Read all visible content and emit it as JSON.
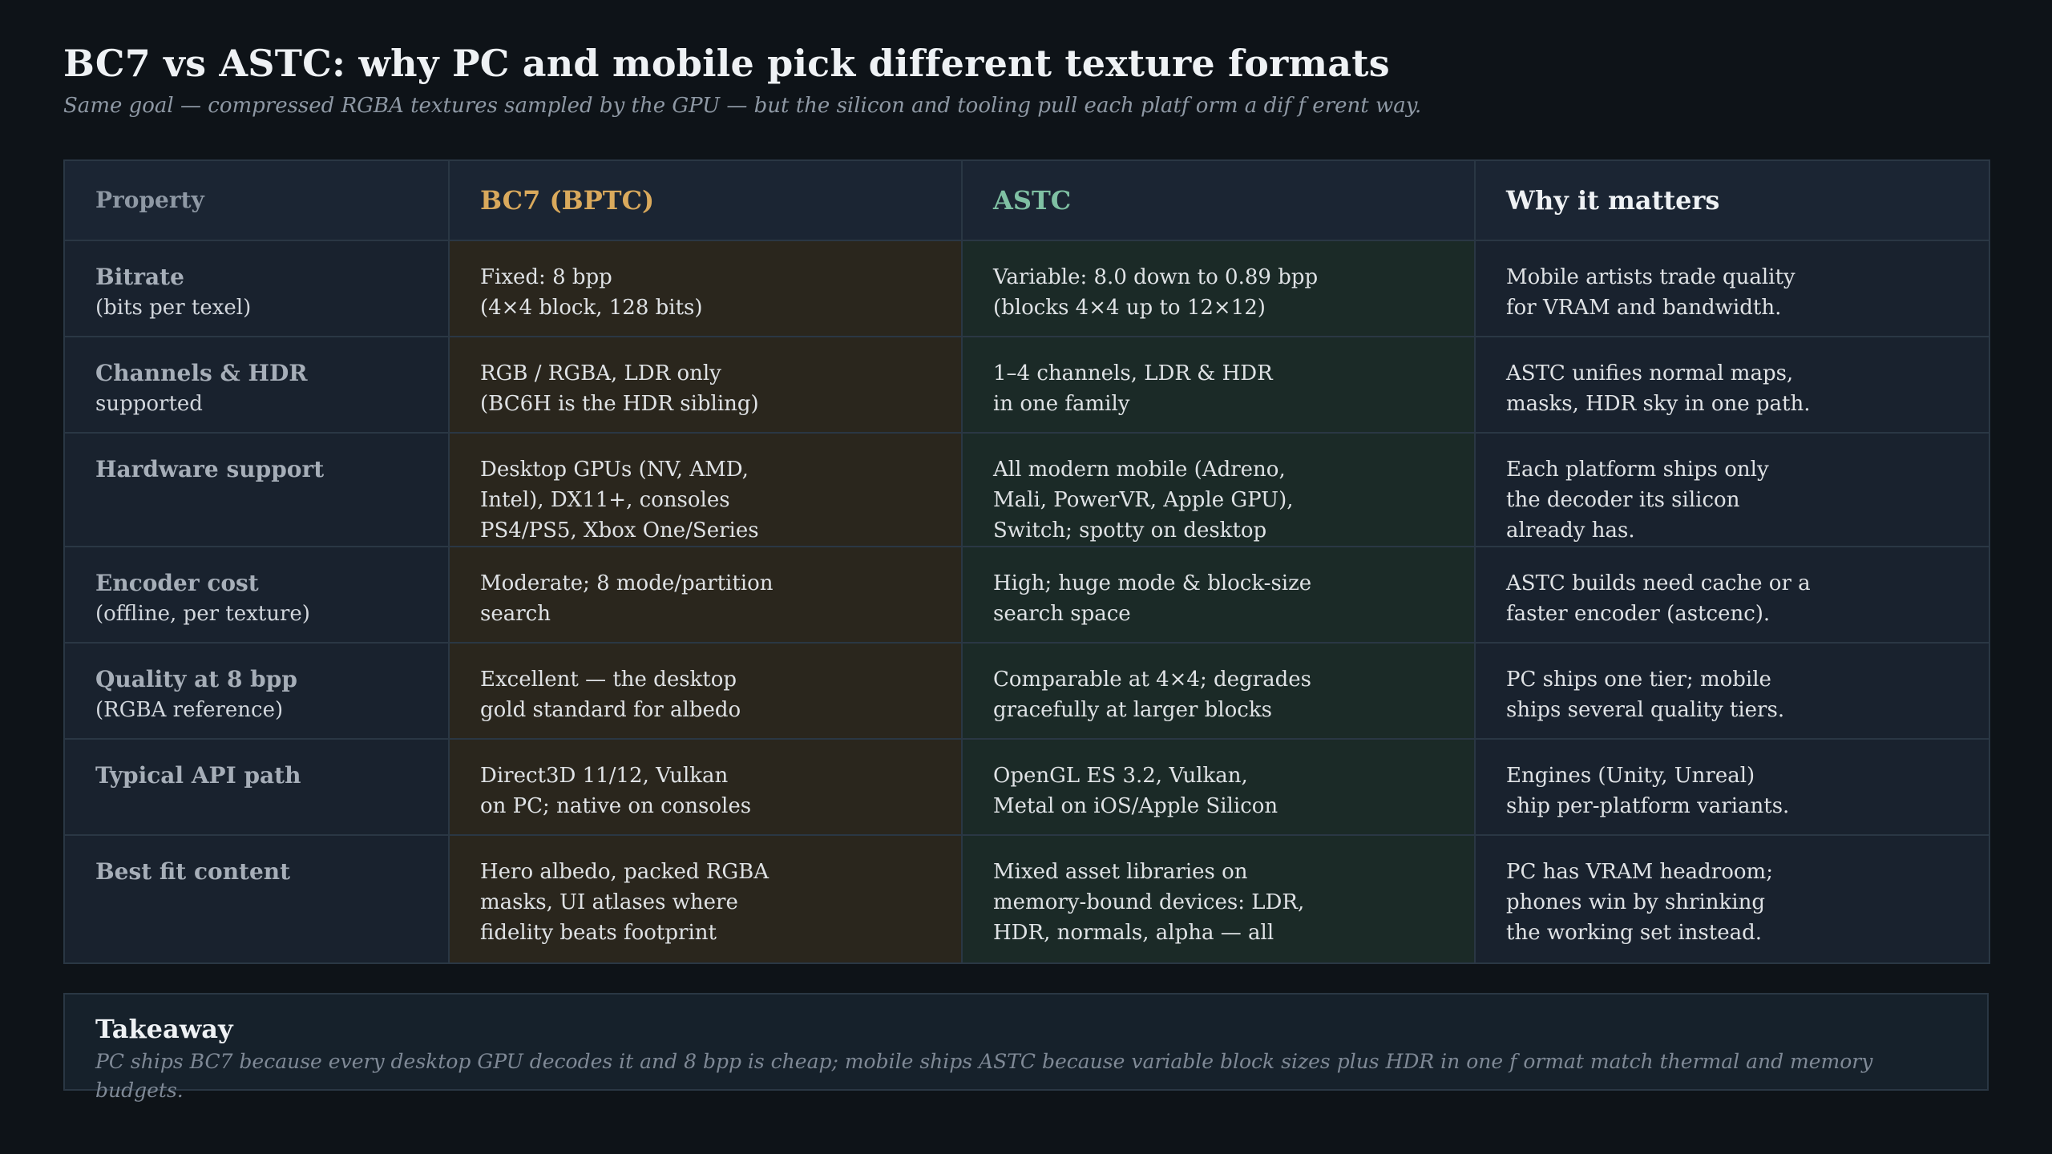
{
  "header": {
    "title": "BC7 vs ASTC: why PC and mobile pick different texture formats",
    "subtitle": "Same goal — compressed RGBA textures sampled by the GPU — but the silicon and tooling pull each platf orm a dif f erent way."
  },
  "table": {
    "columns": [
      "Property",
      "BC7 (BPTC)",
      "ASTC",
      "Why it matters"
    ],
    "rows": [
      {
        "property": "Bitrate",
        "property_sub": "(bits per texel)",
        "bc7": "Fixed: 8 bpp\n(4×4 block, 128 bits)",
        "astc": "Variable: 8.0 down to 0.89 bpp\n(blocks 4×4 up to 12×12)",
        "why": "Mobile artists trade quality\nfor VRAM and bandwidth."
      },
      {
        "property": "Channels & HDR",
        "property_sub": "supported",
        "bc7": "RGB / RGBA, LDR only\n(BC6H is the HDR sibling)",
        "astc": "1–4 channels, LDR & HDR\nin one family",
        "why": "ASTC unifies normal maps,\nmasks, HDR sky in one path."
      },
      {
        "property": "Hardware support",
        "property_sub": "",
        "bc7": "Desktop GPUs (NV, AMD,\nIntel), DX11+, consoles\nPS4/PS5, Xbox One/Series",
        "astc": "All modern mobile (Adreno,\nMali, PowerVR, Apple GPU),\nSwitch; spotty on desktop",
        "why": "Each platform ships only\nthe decoder its silicon\nalready has."
      },
      {
        "property": "Encoder cost",
        "property_sub": "(offline, per texture)",
        "bc7": "Moderate; 8 mode/partition\nsearch",
        "astc": "High; huge mode & block-size\nsearch space",
        "why": "ASTC builds need cache or a\nfaster encoder (astcenc)."
      },
      {
        "property": "Quality at 8 bpp",
        "property_sub": "(RGBA reference)",
        "bc7": "Excellent — the desktop\ngold standard for albedo",
        "astc": "Comparable at 4×4; degrades\ngracefully at larger blocks",
        "why": "PC ships one tier; mobile\nships several quality tiers."
      },
      {
        "property": "Typical API path",
        "property_sub": "",
        "bc7": "Direct3D 11/12, Vulkan\non PC; native on consoles",
        "astc": "OpenGL ES 3.2, Vulkan,\nMetal on iOS/Apple Silicon",
        "why": "Engines (Unity, Unreal)\nship per-platform variants."
      },
      {
        "property": "Best fit content",
        "property_sub": "",
        "bc7": "Hero albedo, packed RGBA\nmasks, UI atlases where\nfidelity beats footprint",
        "astc": "Mixed asset libraries on\nmemory-bound devices: LDR,\nHDR, normals, alpha — all",
        "why": "PC has VRAM headroom;\nphones win by shrinking\nthe working set instead."
      }
    ]
  },
  "takeaway": {
    "title": "Takeaway",
    "text": "PC ships BC7 because every desktop GPU decodes it and 8 bpp is cheap; mobile ships ASTC because variable block sizes plus HDR in one f ormat match thermal and memory budgets."
  },
  "colors": {
    "background": "#0e1318",
    "bc7_accent": "#d9a95c",
    "astc_accent": "#7fc0a3",
    "bc7_column": "#2a261d",
    "astc_column": "#1b2a27"
  }
}
